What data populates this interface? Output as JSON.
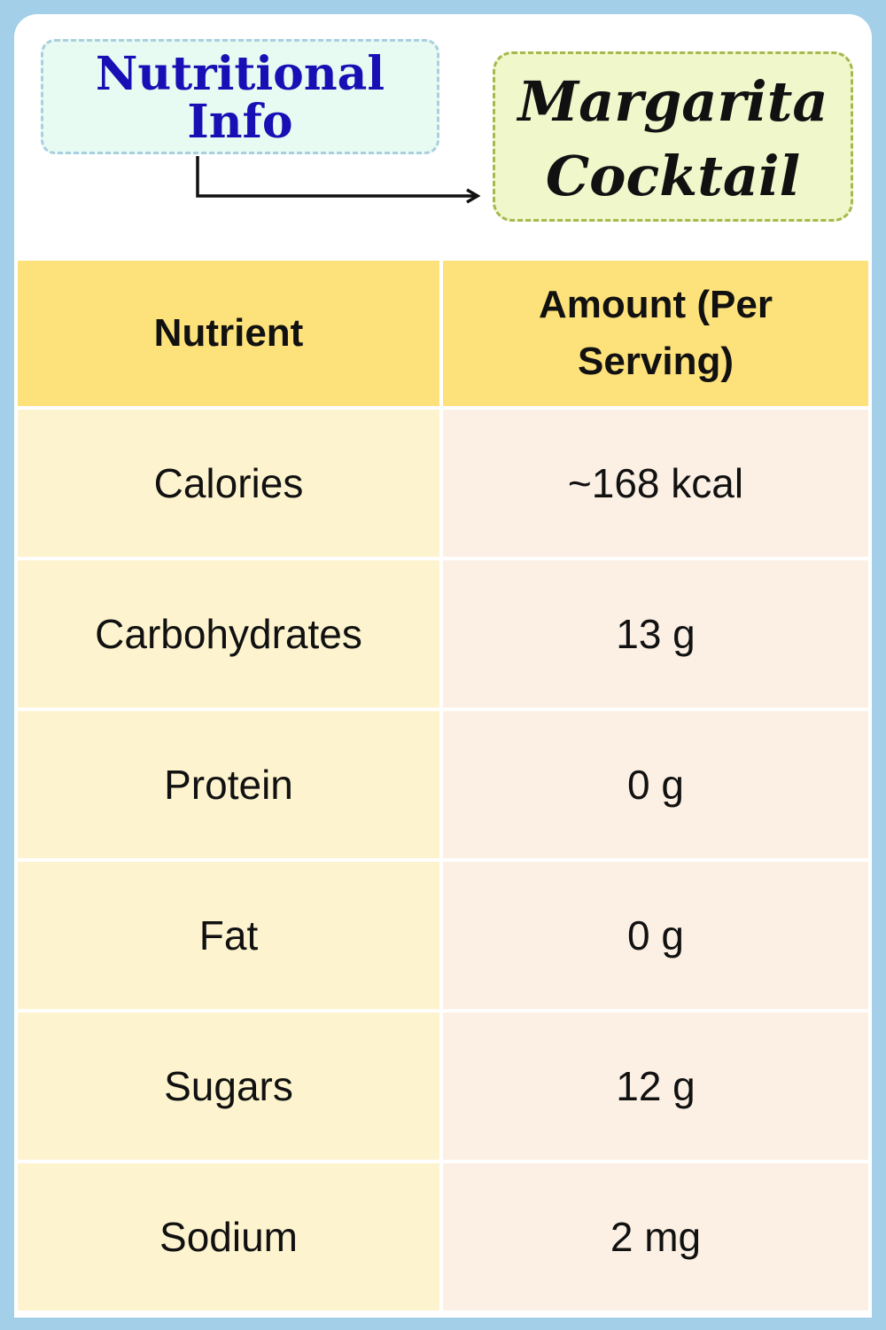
{
  "badge": {
    "line1": "Nutritional",
    "line2": "Info"
  },
  "title": {
    "line1": "Margarita",
    "line2": "Cocktail"
  },
  "table": {
    "headers": [
      "Nutrient",
      "Amount (Per Serving)"
    ],
    "rows": [
      {
        "nutrient": "Calories",
        "amount": "~168 kcal"
      },
      {
        "nutrient": "Carbohydrates",
        "amount": "13 g"
      },
      {
        "nutrient": "Protein",
        "amount": "0 g"
      },
      {
        "nutrient": "Fat",
        "amount": "0 g"
      },
      {
        "nutrient": "Sugars",
        "amount": "12 g"
      },
      {
        "nutrient": "Sodium",
        "amount": "2 mg"
      }
    ]
  },
  "colors": {
    "page_background": "#a3cfe9",
    "header_fill": "#fde17a",
    "left_cell_fill": "#fdf4cf",
    "right_cell_fill": "#fcf0e4",
    "badge_text": "#1a0fb5",
    "badge_fill": "#e8fbf3",
    "title_fill": "#eff7cb",
    "title_border": "#a7b84e"
  },
  "icons": {
    "connector": "elbow-arrow-icon"
  }
}
